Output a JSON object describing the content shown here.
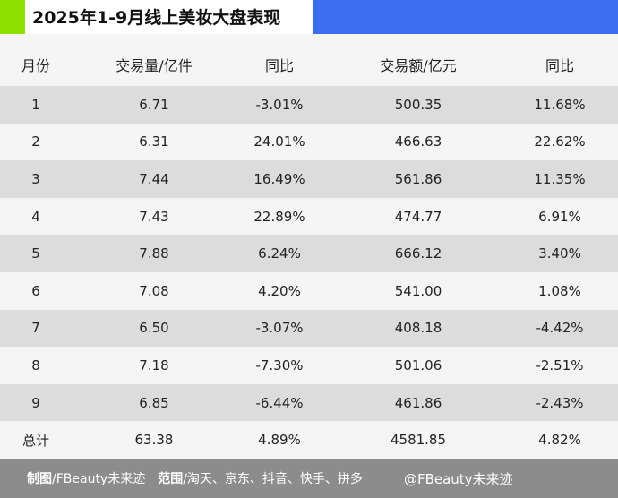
{
  "header": {
    "title": "2025年1-9月线上美妆大盘表现"
  },
  "table": {
    "columns": [
      "月份",
      "交易量/亿件",
      "同比",
      "交易额/亿元",
      "同比"
    ],
    "rows": [
      [
        "1",
        "6.71",
        "-3.01%",
        "500.35",
        "11.68%"
      ],
      [
        "2",
        "6.31",
        "24.01%",
        "466.63",
        "22.62%"
      ],
      [
        "3",
        "7.44",
        "16.49%",
        "561.86",
        "11.35%"
      ],
      [
        "4",
        "7.43",
        "22.89%",
        "474.77",
        "6.91%"
      ],
      [
        "5",
        "7.88",
        "6.24%",
        "666.12",
        "3.40%"
      ],
      [
        "6",
        "7.08",
        "4.20%",
        "541.00",
        "1.08%"
      ],
      [
        "7",
        "6.50",
        "-3.07%",
        "408.18",
        "-4.42%"
      ],
      [
        "8",
        "7.18",
        "-7.30%",
        "501.06",
        "-2.51%"
      ],
      [
        "9",
        "6.85",
        "-6.44%",
        "461.86",
        "-2.43%"
      ],
      [
        "总计",
        "63.38",
        "4.89%",
        "4581.85",
        "4.82%"
      ]
    ]
  },
  "footer": {
    "maker_label": "制图",
    "maker": "/FBeauty未来迹",
    "scope_label": "范围",
    "scope": "/淘天、京东、抖音、快手、拼多",
    "watermark": "@FBeauty未来迹"
  }
}
